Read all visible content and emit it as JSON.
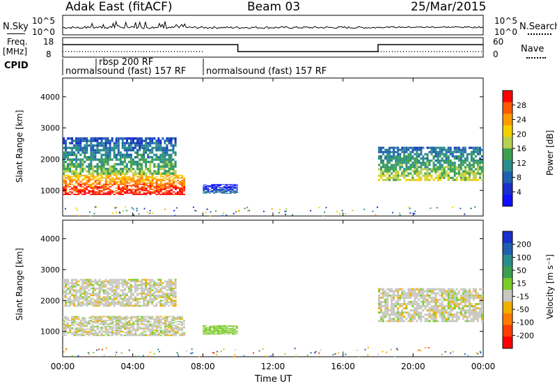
{
  "header": {
    "station": "Adak East (fitACF)",
    "beam": "Beam 03",
    "date": "25/Mar/2015"
  },
  "panels": {
    "noise": {
      "left_label": "N.Sky",
      "right_label": "N.Search",
      "left_ticks": [
        "10^5",
        "10^0"
      ],
      "right_ticks": [
        "10^5",
        "10^0"
      ]
    },
    "freq": {
      "left_label_1": "Freq.",
      "left_label_2": "[MHz]",
      "left_ticks": [
        "18",
        "8"
      ],
      "right_label": "Nave",
      "right_ticks": [
        "60",
        "0"
      ]
    },
    "cpid": {
      "label": "CPID",
      "segments": [
        {
          "name": "rbsp 200 RF",
          "start_h": 2.0,
          "end_h": 7.8
        },
        {
          "name": "normalsound (fast) 157 RF",
          "start_h": 0.0,
          "end_h": 7.8
        },
        {
          "name": "normalsound (fast) 157 RF",
          "start_h": 7.8,
          "end_h": 24.0
        }
      ]
    }
  },
  "power_colorbar": {
    "title": "Power [dB]",
    "ticks": [
      "28",
      "24",
      "20",
      "16",
      "12",
      "8",
      "4"
    ],
    "colors": [
      "#ff0000",
      "#ff5a00",
      "#ff9a00",
      "#f5d000",
      "#b8d050",
      "#3ca050",
      "#2a8c8c",
      "#1f5fb0",
      "#1a30c8",
      "#1010ff"
    ]
  },
  "velocity_colorbar": {
    "title": "Velocity [m s⁻¹]",
    "ticks": [
      "200",
      "100",
      "50",
      "15",
      "-15",
      "-50",
      "-100",
      "-200"
    ],
    "colors": [
      "#1a30c8",
      "#1f5fb0",
      "#2a8c8c",
      "#3ca050",
      "#7ccc28",
      "#c8c8c0",
      "#f0b000",
      "#ff7a00",
      "#ff3c00",
      "#ff0000"
    ]
  },
  "chart_data": [
    {
      "type": "heatmap",
      "title": "",
      "ylabel": "Slant Range [km]",
      "xlabel": "Time UT",
      "y_ticks": [
        "1000",
        "2000",
        "3000",
        "4000"
      ],
      "x_ticks": [
        "00:00",
        "04:00",
        "08:00",
        "12:00",
        "16:00",
        "20:00",
        "00:00"
      ],
      "xlim_hours": [
        0,
        24
      ],
      "ylim_km": [
        180,
        4600
      ],
      "colorbar": "power_colorbar",
      "echo_regions": [
        {
          "t0": 0.0,
          "t1": 7.0,
          "r_low": 850,
          "r_high": 1500,
          "value_db": 26
        },
        {
          "t0": 0.0,
          "t1": 6.5,
          "r_low": 1500,
          "r_high": 2700,
          "value_db": 12
        },
        {
          "t0": 8.0,
          "t1": 10.0,
          "r_low": 900,
          "r_high": 1200,
          "value_db": 6
        },
        {
          "t0": 18.0,
          "t1": 24.0,
          "r_low": 1300,
          "r_high": 2400,
          "value_db": 14
        }
      ]
    },
    {
      "type": "heatmap",
      "title": "",
      "ylabel": "Slant Range [km]",
      "xlabel": "Time UT",
      "y_ticks": [
        "1000",
        "2000",
        "3000",
        "4000"
      ],
      "x_ticks": [
        "00:00",
        "04:00",
        "08:00",
        "12:00",
        "16:00",
        "20:00",
        "00:00"
      ],
      "xlim_hours": [
        0,
        24
      ],
      "ylim_km": [
        180,
        4600
      ],
      "colorbar": "velocity_colorbar",
      "echo_regions": [
        {
          "t0": 0.0,
          "t1": 7.0,
          "r_low": 850,
          "r_high": 1500,
          "value_ms": 0
        },
        {
          "t0": 0.0,
          "t1": 6.5,
          "r_low": 1800,
          "r_high": 2700,
          "value_ms": 0
        },
        {
          "t0": 8.0,
          "t1": 10.0,
          "r_low": 900,
          "r_high": 1200,
          "value_ms": 30
        },
        {
          "t0": 18.0,
          "t1": 24.0,
          "r_low": 1300,
          "r_high": 2400,
          "value_ms": 0
        }
      ]
    }
  ],
  "axis": {
    "xlabel": "Time UT"
  }
}
